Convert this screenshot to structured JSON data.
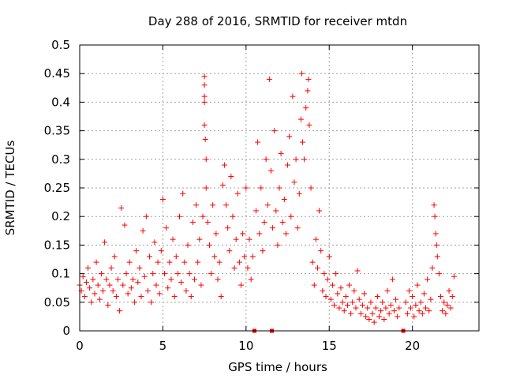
{
  "chart_data": {
    "type": "scatter",
    "title": "Day 288 of 2016, SRMTID for receiver mtdn",
    "xlabel": "GPS time / hours",
    "ylabel": "SRMTID / TECUs",
    "xlim": [
      0,
      24
    ],
    "ylim": [
      0,
      0.5
    ],
    "x_ticks": [
      0,
      5,
      10,
      15,
      20
    ],
    "y_ticks": [
      0,
      0.05,
      0.1,
      0.15,
      0.2,
      0.25,
      0.3,
      0.35,
      0.4,
      0.45,
      0.5
    ],
    "x_tick_labels": [
      "0",
      "5",
      "10",
      "15",
      "20"
    ],
    "y_tick_labels": [
      "0",
      "0.05",
      "0.1",
      "0.15",
      "0.2",
      "0.25",
      "0.3",
      "0.35",
      "0.4",
      "0.45",
      "0.5"
    ],
    "grid": true,
    "marker": "+",
    "color": "#ff0000",
    "gap_markers_x": [
      10.5,
      11.55,
      19.45
    ],
    "series": [
      {
        "name": "SRMTID",
        "points": [
          [
            0.0,
            0.08
          ],
          [
            0.1,
            0.07
          ],
          [
            0.2,
            0.095
          ],
          [
            0.3,
            0.06
          ],
          [
            0.4,
            0.085
          ],
          [
            0.5,
            0.11
          ],
          [
            0.6,
            0.075
          ],
          [
            0.7,
            0.05
          ],
          [
            0.8,
            0.09
          ],
          [
            0.9,
            0.065
          ],
          [
            1.0,
            0.12
          ],
          [
            1.1,
            0.08
          ],
          [
            1.2,
            0.055
          ],
          [
            1.3,
            0.1
          ],
          [
            1.4,
            0.07
          ],
          [
            1.5,
            0.155
          ],
          [
            1.6,
            0.09
          ],
          [
            1.7,
            0.045
          ],
          [
            1.8,
            0.08
          ],
          [
            1.9,
            0.11
          ],
          [
            2.0,
            0.07
          ],
          [
            2.1,
            0.13
          ],
          [
            2.2,
            0.06
          ],
          [
            2.3,
            0.09
          ],
          [
            2.4,
            0.035
          ],
          [
            2.5,
            0.215
          ],
          [
            2.6,
            0.08
          ],
          [
            2.7,
            0.185
          ],
          [
            2.8,
            0.1
          ],
          [
            2.9,
            0.065
          ],
          [
            3.0,
            0.12
          ],
          [
            3.1,
            0.075
          ],
          [
            3.2,
            0.09
          ],
          [
            3.3,
            0.05
          ],
          [
            3.4,
            0.14
          ],
          [
            3.5,
            0.085
          ],
          [
            3.6,
            0.11
          ],
          [
            3.7,
            0.06
          ],
          [
            3.8,
            0.175
          ],
          [
            3.9,
            0.095
          ],
          [
            4.0,
            0.2
          ],
          [
            4.1,
            0.07
          ],
          [
            4.2,
            0.13
          ],
          [
            4.3,
            0.05
          ],
          [
            4.4,
            0.1
          ],
          [
            4.5,
            0.155
          ],
          [
            4.6,
            0.08
          ],
          [
            4.7,
            0.12
          ],
          [
            4.8,
            0.065
          ],
          [
            4.9,
            0.14
          ],
          [
            5.0,
            0.23
          ],
          [
            5.1,
            0.1
          ],
          [
            5.2,
            0.18
          ],
          [
            5.3,
            0.075
          ],
          [
            5.4,
            0.12
          ],
          [
            5.5,
            0.09
          ],
          [
            5.6,
            0.16
          ],
          [
            5.7,
            0.06
          ],
          [
            5.8,
            0.13
          ],
          [
            5.9,
            0.1
          ],
          [
            6.0,
            0.2
          ],
          [
            6.1,
            0.085
          ],
          [
            6.2,
            0.24
          ],
          [
            6.3,
            0.12
          ],
          [
            6.4,
            0.07
          ],
          [
            6.5,
            0.15
          ],
          [
            6.6,
            0.1
          ],
          [
            6.7,
            0.06
          ],
          [
            6.8,
            0.19
          ],
          [
            6.9,
            0.09
          ],
          [
            7.0,
            0.22
          ],
          [
            7.1,
            0.12
          ],
          [
            7.2,
            0.16
          ],
          [
            7.3,
            0.08
          ],
          [
            7.4,
            0.2
          ],
          [
            7.5,
            0.445
          ],
          [
            7.5,
            0.43
          ],
          [
            7.5,
            0.41
          ],
          [
            7.5,
            0.4
          ],
          [
            7.5,
            0.36
          ],
          [
            7.55,
            0.335
          ],
          [
            7.6,
            0.3
          ],
          [
            7.6,
            0.25
          ],
          [
            7.7,
            0.19
          ],
          [
            7.8,
            0.15
          ],
          [
            7.9,
            0.1
          ],
          [
            8.0,
            0.22
          ],
          [
            8.1,
            0.13
          ],
          [
            8.2,
            0.17
          ],
          [
            8.3,
            0.09
          ],
          [
            8.4,
            0.12
          ],
          [
            8.5,
            0.06
          ],
          [
            8.6,
            0.255
          ],
          [
            8.7,
            0.29
          ],
          [
            8.8,
            0.22
          ],
          [
            8.9,
            0.18
          ],
          [
            9.0,
            0.14
          ],
          [
            9.1,
            0.27
          ],
          [
            9.2,
            0.2
          ],
          [
            9.3,
            0.11
          ],
          [
            9.4,
            0.16
          ],
          [
            9.5,
            0.24
          ],
          [
            9.6,
            0.12
          ],
          [
            9.7,
            0.08
          ],
          [
            9.8,
            0.17
          ],
          [
            9.9,
            0.13
          ],
          [
            10.0,
            0.25
          ],
          [
            10.1,
            0.11
          ],
          [
            10.2,
            0.16
          ],
          [
            10.3,
            0.09
          ],
          [
            10.4,
            0.13
          ],
          [
            10.6,
            0.21
          ],
          [
            10.7,
            0.33
          ],
          [
            10.8,
            0.17
          ],
          [
            10.9,
            0.25
          ],
          [
            11.0,
            0.14
          ],
          [
            11.1,
            0.19
          ],
          [
            11.2,
            0.3
          ],
          [
            11.3,
            0.22
          ],
          [
            11.4,
            0.44
          ],
          [
            11.5,
            0.28
          ],
          [
            11.6,
            0.18
          ],
          [
            11.7,
            0.35
          ],
          [
            11.8,
            0.21
          ],
          [
            11.9,
            0.15
          ],
          [
            12.0,
            0.25
          ],
          [
            12.1,
            0.31
          ],
          [
            12.2,
            0.19
          ],
          [
            12.3,
            0.23
          ],
          [
            12.4,
            0.17
          ],
          [
            12.5,
            0.29
          ],
          [
            12.6,
            0.34
          ],
          [
            12.7,
            0.2
          ],
          [
            12.8,
            0.41
          ],
          [
            12.9,
            0.26
          ],
          [
            13.0,
            0.3
          ],
          [
            13.1,
            0.18
          ],
          [
            13.2,
            0.24
          ],
          [
            13.3,
            0.37
          ],
          [
            13.35,
            0.45
          ],
          [
            13.4,
            0.33
          ],
          [
            13.5,
            0.3
          ],
          [
            13.6,
            0.39
          ],
          [
            13.7,
            0.42
          ],
          [
            13.75,
            0.44
          ],
          [
            13.8,
            0.36
          ],
          [
            13.9,
            0.25
          ],
          [
            14.0,
            0.12
          ],
          [
            14.1,
            0.08
          ],
          [
            14.2,
            0.16
          ],
          [
            14.3,
            0.11
          ],
          [
            14.4,
            0.21
          ],
          [
            14.5,
            0.14
          ],
          [
            14.6,
            0.07
          ],
          [
            14.7,
            0.1
          ],
          [
            14.8,
            0.06
          ],
          [
            14.9,
            0.09
          ],
          [
            15.0,
            0.13
          ],
          [
            15.1,
            0.055
          ],
          [
            15.2,
            0.08
          ],
          [
            15.3,
            0.045
          ],
          [
            15.4,
            0.1
          ],
          [
            15.5,
            0.065
          ],
          [
            15.6,
            0.04
          ],
          [
            15.7,
            0.075
          ],
          [
            15.8,
            0.05
          ],
          [
            15.9,
            0.035
          ],
          [
            16.0,
            0.06
          ],
          [
            16.1,
            0.045
          ],
          [
            16.2,
            0.08
          ],
          [
            16.3,
            0.03
          ],
          [
            16.4,
            0.05
          ],
          [
            16.5,
            0.07
          ],
          [
            16.6,
            0.04
          ],
          [
            16.7,
            0.105
          ],
          [
            16.8,
            0.055
          ],
          [
            16.9,
            0.03
          ],
          [
            17.0,
            0.045
          ],
          [
            17.1,
            0.065
          ],
          [
            17.2,
            0.025
          ],
          [
            17.3,
            0.04
          ],
          [
            17.4,
            0.02
          ],
          [
            17.5,
            0.05
          ],
          [
            17.6,
            0.03
          ],
          [
            17.7,
            0.015
          ],
          [
            17.8,
            0.04
          ],
          [
            17.9,
            0.06
          ],
          [
            18.0,
            0.025
          ],
          [
            18.1,
            0.035
          ],
          [
            18.2,
            0.05
          ],
          [
            18.3,
            0.02
          ],
          [
            18.4,
            0.04
          ],
          [
            18.5,
            0.07
          ],
          [
            18.6,
            0.03
          ],
          [
            18.7,
            0.045
          ],
          [
            18.8,
            0.09
          ],
          [
            18.9,
            0.035
          ],
          [
            19.0,
            0.055
          ],
          [
            19.1,
            0.025
          ],
          [
            19.2,
            0.04
          ],
          [
            19.6,
            0.05
          ],
          [
            19.7,
            0.03
          ],
          [
            19.8,
            0.07
          ],
          [
            19.9,
            0.04
          ],
          [
            20.0,
            0.06
          ],
          [
            20.1,
            0.025
          ],
          [
            20.2,
            0.045
          ],
          [
            20.3,
            0.08
          ],
          [
            20.4,
            0.035
          ],
          [
            20.5,
            0.05
          ],
          [
            20.6,
            0.03
          ],
          [
            20.7,
            0.065
          ],
          [
            20.8,
            0.04
          ],
          [
            20.9,
            0.09
          ],
          [
            21.0,
            0.035
          ],
          [
            21.1,
            0.055
          ],
          [
            21.2,
            0.11
          ],
          [
            21.3,
            0.22
          ],
          [
            21.35,
            0.2
          ],
          [
            21.4,
            0.17
          ],
          [
            21.45,
            0.15
          ],
          [
            21.5,
            0.13
          ],
          [
            21.6,
            0.1
          ],
          [
            21.7,
            0.06
          ],
          [
            21.8,
            0.035
          ],
          [
            21.9,
            0.05
          ],
          [
            22.0,
            0.03
          ],
          [
            22.1,
            0.045
          ],
          [
            22.2,
            0.07
          ],
          [
            22.3,
            0.04
          ],
          [
            22.4,
            0.06
          ],
          [
            22.5,
            0.095
          ]
        ]
      }
    ]
  }
}
